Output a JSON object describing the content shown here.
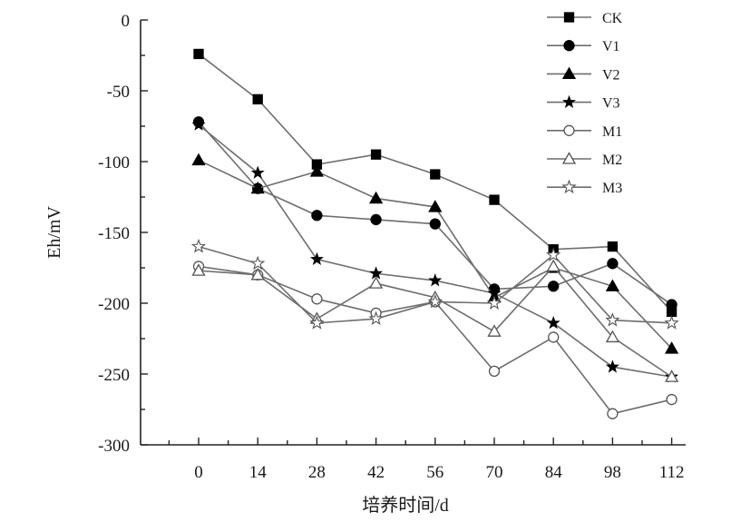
{
  "chart_data": {
    "type": "line",
    "title": "",
    "xlabel": "培养时间/d",
    "ylabel": "Eh/mV",
    "x": [
      0,
      14,
      28,
      42,
      56,
      70,
      84,
      98,
      112
    ],
    "x_ticks": [
      "0",
      "14",
      "28",
      "42",
      "56",
      "70",
      "84",
      "98",
      "112"
    ],
    "y_ticks": [
      "0",
      "-50",
      "-100",
      "-150",
      "-200",
      "-250",
      "-300"
    ],
    "ylim": [
      -300,
      0
    ],
    "grid": false,
    "legend_position": "top-right",
    "line_color": "#6e6e6e",
    "marker_color": "#000000",
    "series": [
      {
        "name": "CK",
        "marker": "square-filled",
        "values": [
          -24,
          -56,
          -102,
          -95,
          -109,
          -127,
          -162,
          -160,
          -206
        ]
      },
      {
        "name": "V1",
        "marker": "circle-filled",
        "values": [
          -72,
          -119,
          -138,
          -141,
          -144,
          -190,
          -188,
          -172,
          -201
        ]
      },
      {
        "name": "V2",
        "marker": "triangle-filled",
        "values": [
          -99,
          -119,
          -107,
          -126,
          -132,
          -196,
          -175,
          -188,
          -232
        ]
      },
      {
        "name": "V3",
        "marker": "star-filled",
        "values": [
          -74,
          -108,
          -169,
          -179,
          -184,
          -193,
          -214,
          -245,
          -252
        ]
      },
      {
        "name": "M1",
        "marker": "circle-open",
        "values": [
          -174,
          -180,
          -197,
          -207,
          -199,
          -248,
          -224,
          -278,
          -268
        ]
      },
      {
        "name": "M2",
        "marker": "triangle-open",
        "values": [
          -177,
          -180,
          -211,
          -186,
          -196,
          -220,
          -174,
          -224,
          -252
        ]
      },
      {
        "name": "M3",
        "marker": "star-open",
        "values": [
          -160,
          -172,
          -214,
          -211,
          -199,
          -200,
          -166,
          -212,
          -214
        ]
      }
    ]
  }
}
